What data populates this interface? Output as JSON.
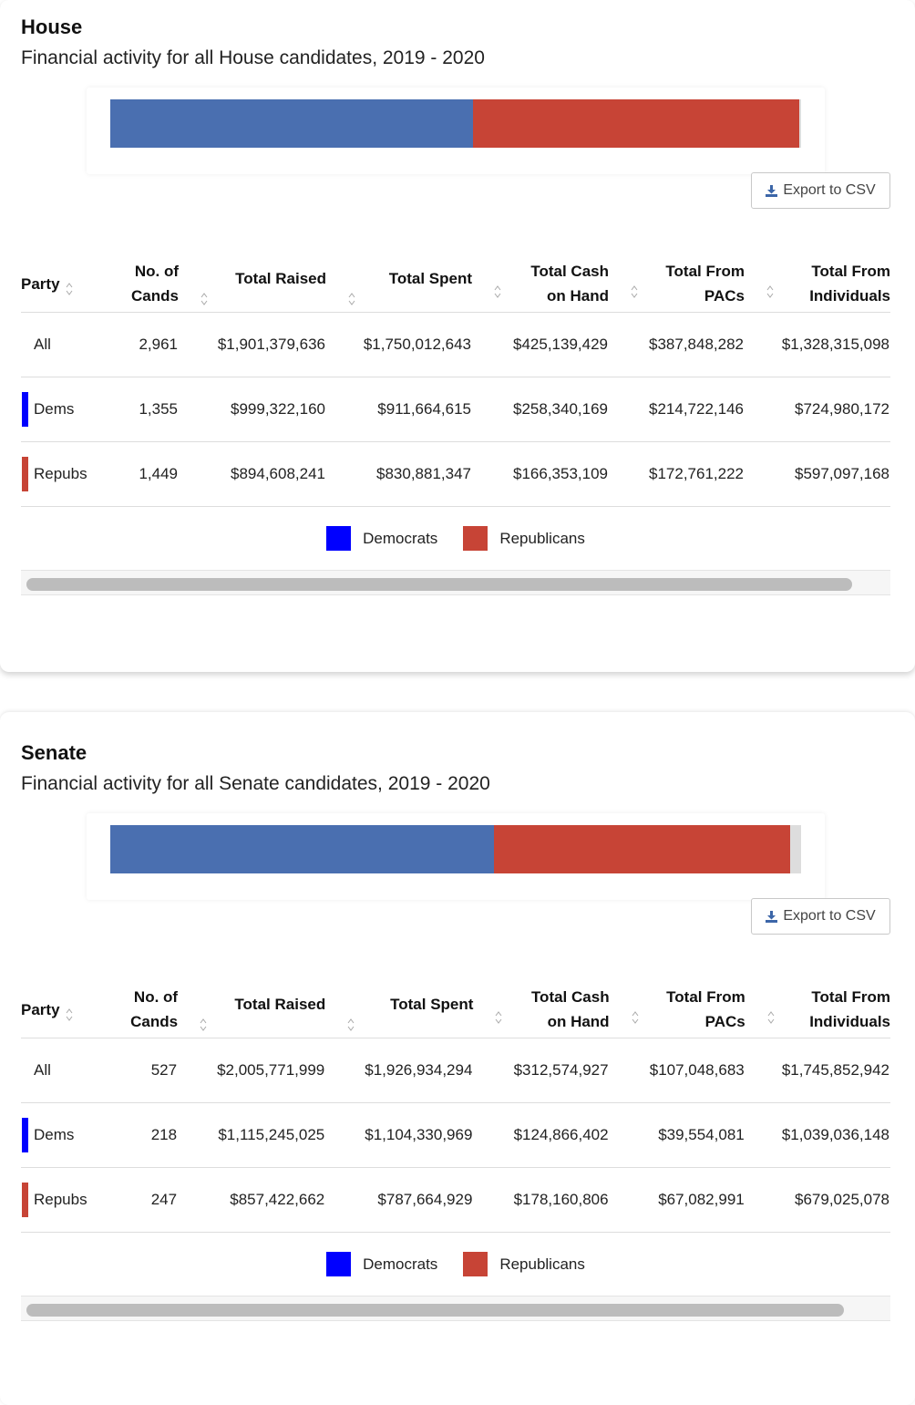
{
  "colors": {
    "dem_bar": "#4a6fb0",
    "rep_bar": "#c74436",
    "other_bar": "#dddddd",
    "dem_swatch": "#0000ff",
    "rep_swatch": "#c74436",
    "export_icon": "#3c66a8"
  },
  "sections": [
    {
      "title": "House",
      "subtitle": "Financial activity for all House candidates, 2019 - 2020",
      "bar": {
        "dem_share": 0.525,
        "rep_share": 0.472
      },
      "export_label": "Export to CSV",
      "export_icon": "download-icon",
      "columns": [
        "Party",
        "No. of Cands",
        "Total Raised",
        "Total Spent",
        "Total Cash on Hand",
        "Total From PACs",
        "Total From Individuals"
      ],
      "rows": [
        {
          "party": "All",
          "swatch": "none",
          "cands": "2,961",
          "raised": "$1,901,379,636",
          "spent": "$1,750,012,643",
          "cash": "$425,139,429",
          "pacs": "$387,848,282",
          "individuals": "$1,328,315,098"
        },
        {
          "party": "Dems",
          "swatch": "dem",
          "cands": "1,355",
          "raised": "$999,322,160",
          "spent": "$911,664,615",
          "cash": "$258,340,169",
          "pacs": "$214,722,146",
          "individuals": "$724,980,172"
        },
        {
          "party": "Repubs",
          "swatch": "rep",
          "cands": "1,449",
          "raised": "$894,608,241",
          "spent": "$830,881,347",
          "cash": "$166,353,109",
          "pacs": "$172,761,222",
          "individuals": "$597,097,168"
        }
      ],
      "legend": {
        "dem": "Democrats",
        "rep": "Republicans"
      },
      "scroll_fraction": 0.95
    },
    {
      "title": "Senate",
      "subtitle": "Financial activity for all Senate candidates, 2019 - 2020",
      "bar": {
        "dem_share": 0.556,
        "rep_share": 0.428
      },
      "export_label": "Export to CSV",
      "export_icon": "download-icon",
      "columns": [
        "Party",
        "No. of Cands",
        "Total Raised",
        "Total Spent",
        "Total Cash on Hand",
        "Total From PACs",
        "Total From Individuals"
      ],
      "rows": [
        {
          "party": "All",
          "swatch": "none",
          "cands": "527",
          "raised": "$2,005,771,999",
          "spent": "$1,926,934,294",
          "cash": "$312,574,927",
          "pacs": "$107,048,683",
          "individuals": "$1,745,852,942"
        },
        {
          "party": "Dems",
          "swatch": "dem",
          "cands": "218",
          "raised": "$1,115,245,025",
          "spent": "$1,104,330,969",
          "cash": "$124,866,402",
          "pacs": "$39,554,081",
          "individuals": "$1,039,036,148"
        },
        {
          "party": "Repubs",
          "swatch": "rep",
          "cands": "247",
          "raised": "$857,422,662",
          "spent": "$787,664,929",
          "cash": "$178,160,806",
          "pacs": "$67,082,991",
          "individuals": "$679,025,078"
        }
      ],
      "legend": {
        "dem": "Democrats",
        "rep": "Republicans"
      },
      "scroll_fraction": 0.94
    }
  ]
}
